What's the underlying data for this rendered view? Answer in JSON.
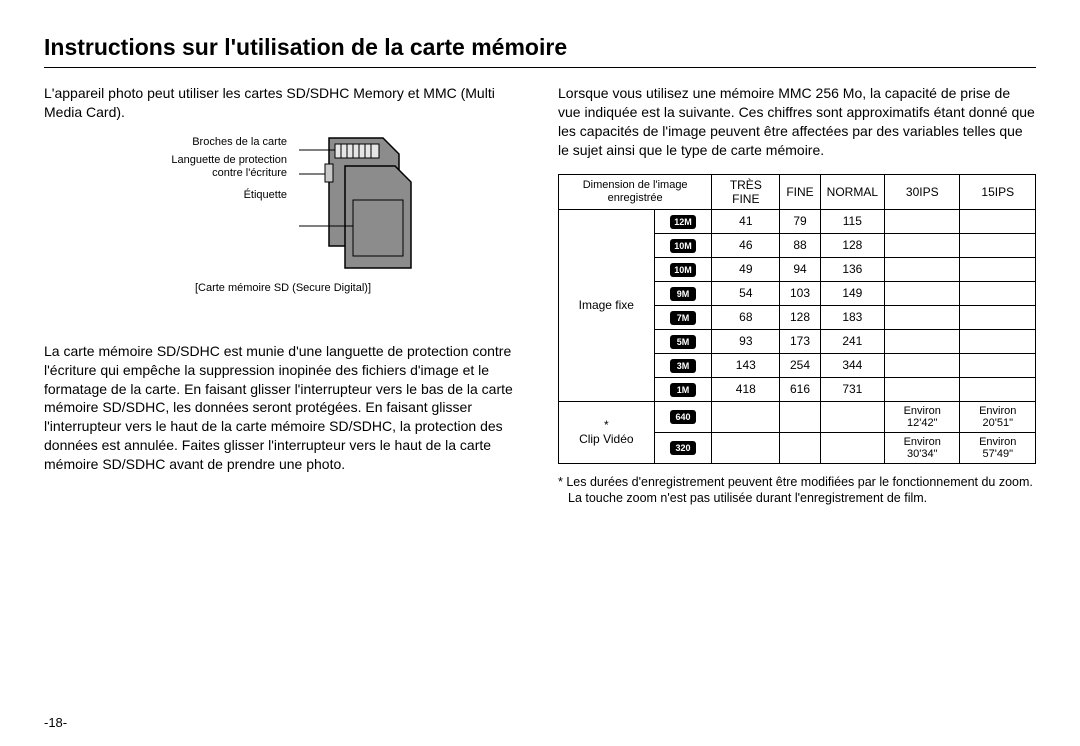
{
  "page": {
    "title": "Instructions sur l'utilisation de la carte mémoire",
    "number": "-18-"
  },
  "left": {
    "p1": "L'appareil photo peut utiliser les cartes SD/SDHC Memory et MMC (Multi Media Card).",
    "diagram": {
      "label_pins": "Broches de la carte",
      "label_tab": "Languette de protection contre l'écriture",
      "label_labelarea": "Étiquette",
      "caption": "[Carte mémoire SD (Secure Digital)]",
      "colors": {
        "body": "#8c8c8c",
        "stroke": "#000000",
        "pin_area": "#e5e5e5",
        "tab": "#c8c8c8"
      }
    },
    "p2": "La carte mémoire SD/SDHC est munie d'une languette de protection contre l'écriture qui empêche la suppression inopinée des fichiers d'image et le formatage de la carte. En faisant glisser l'interrupteur vers le bas de la carte mémoire SD/SDHC, les données seront protégées. En faisant glisser l'interrupteur vers le haut de la carte mémoire SD/SDHC, la protection des données est annulée. Faites glisser l'interrupteur vers le haut de la carte mémoire SD/SDHC avant de prendre une photo."
  },
  "right": {
    "intro": "Lorsque vous utilisez une mémoire MMC 256 Mo, la capacité de prise de vue indiquée est la suivante. Ces chiffres sont approximatifs étant donné que les capacités de l'image peuvent être affectées par des variables telles que le sujet ainsi que le type de carte mémoire.",
    "table": {
      "header": {
        "dim": "Dimension de l'image enregistrée",
        "cols": [
          "TRÈS FINE",
          "FINE",
          "NORMAL",
          "30IPS",
          "15IPS"
        ]
      },
      "image_group_label": "Image fixe",
      "clip_group_label": "* Clip Vidéo",
      "image_rows": [
        {
          "size": "12M",
          "tresfine": "41",
          "fine": "79",
          "normal": "115",
          "ips30": "",
          "ips15": ""
        },
        {
          "size": "10M",
          "tresfine": "46",
          "fine": "88",
          "normal": "128",
          "ips30": "",
          "ips15": ""
        },
        {
          "size": "10M",
          "tresfine": "49",
          "fine": "94",
          "normal": "136",
          "ips30": "",
          "ips15": ""
        },
        {
          "size": "9M",
          "tresfine": "54",
          "fine": "103",
          "normal": "149",
          "ips30": "",
          "ips15": ""
        },
        {
          "size": "7M",
          "tresfine": "68",
          "fine": "128",
          "normal": "183",
          "ips30": "",
          "ips15": ""
        },
        {
          "size": "5M",
          "tresfine": "93",
          "fine": "173",
          "normal": "241",
          "ips30": "",
          "ips15": ""
        },
        {
          "size": "3M",
          "tresfine": "143",
          "fine": "254",
          "normal": "344",
          "ips30": "",
          "ips15": ""
        },
        {
          "size": "1M",
          "tresfine": "418",
          "fine": "616",
          "normal": "731",
          "ips30": "",
          "ips15": ""
        }
      ],
      "clip_rows": [
        {
          "size": "640",
          "tresfine": "",
          "fine": "",
          "normal": "",
          "ips30": "Environ 12'42\"",
          "ips15": "Environ 20'51\""
        },
        {
          "size": "320",
          "tresfine": "",
          "fine": "",
          "normal": "",
          "ips30": "Environ 30'34\"",
          "ips15": "Environ 57'49\""
        }
      ]
    },
    "footnote_line1": "* Les durées d'enregistrement peuvent être modifiées par le fonctionnement du zoom.",
    "footnote_line2": "La touche zoom n'est pas utilisée durant l'enregistrement de film."
  }
}
